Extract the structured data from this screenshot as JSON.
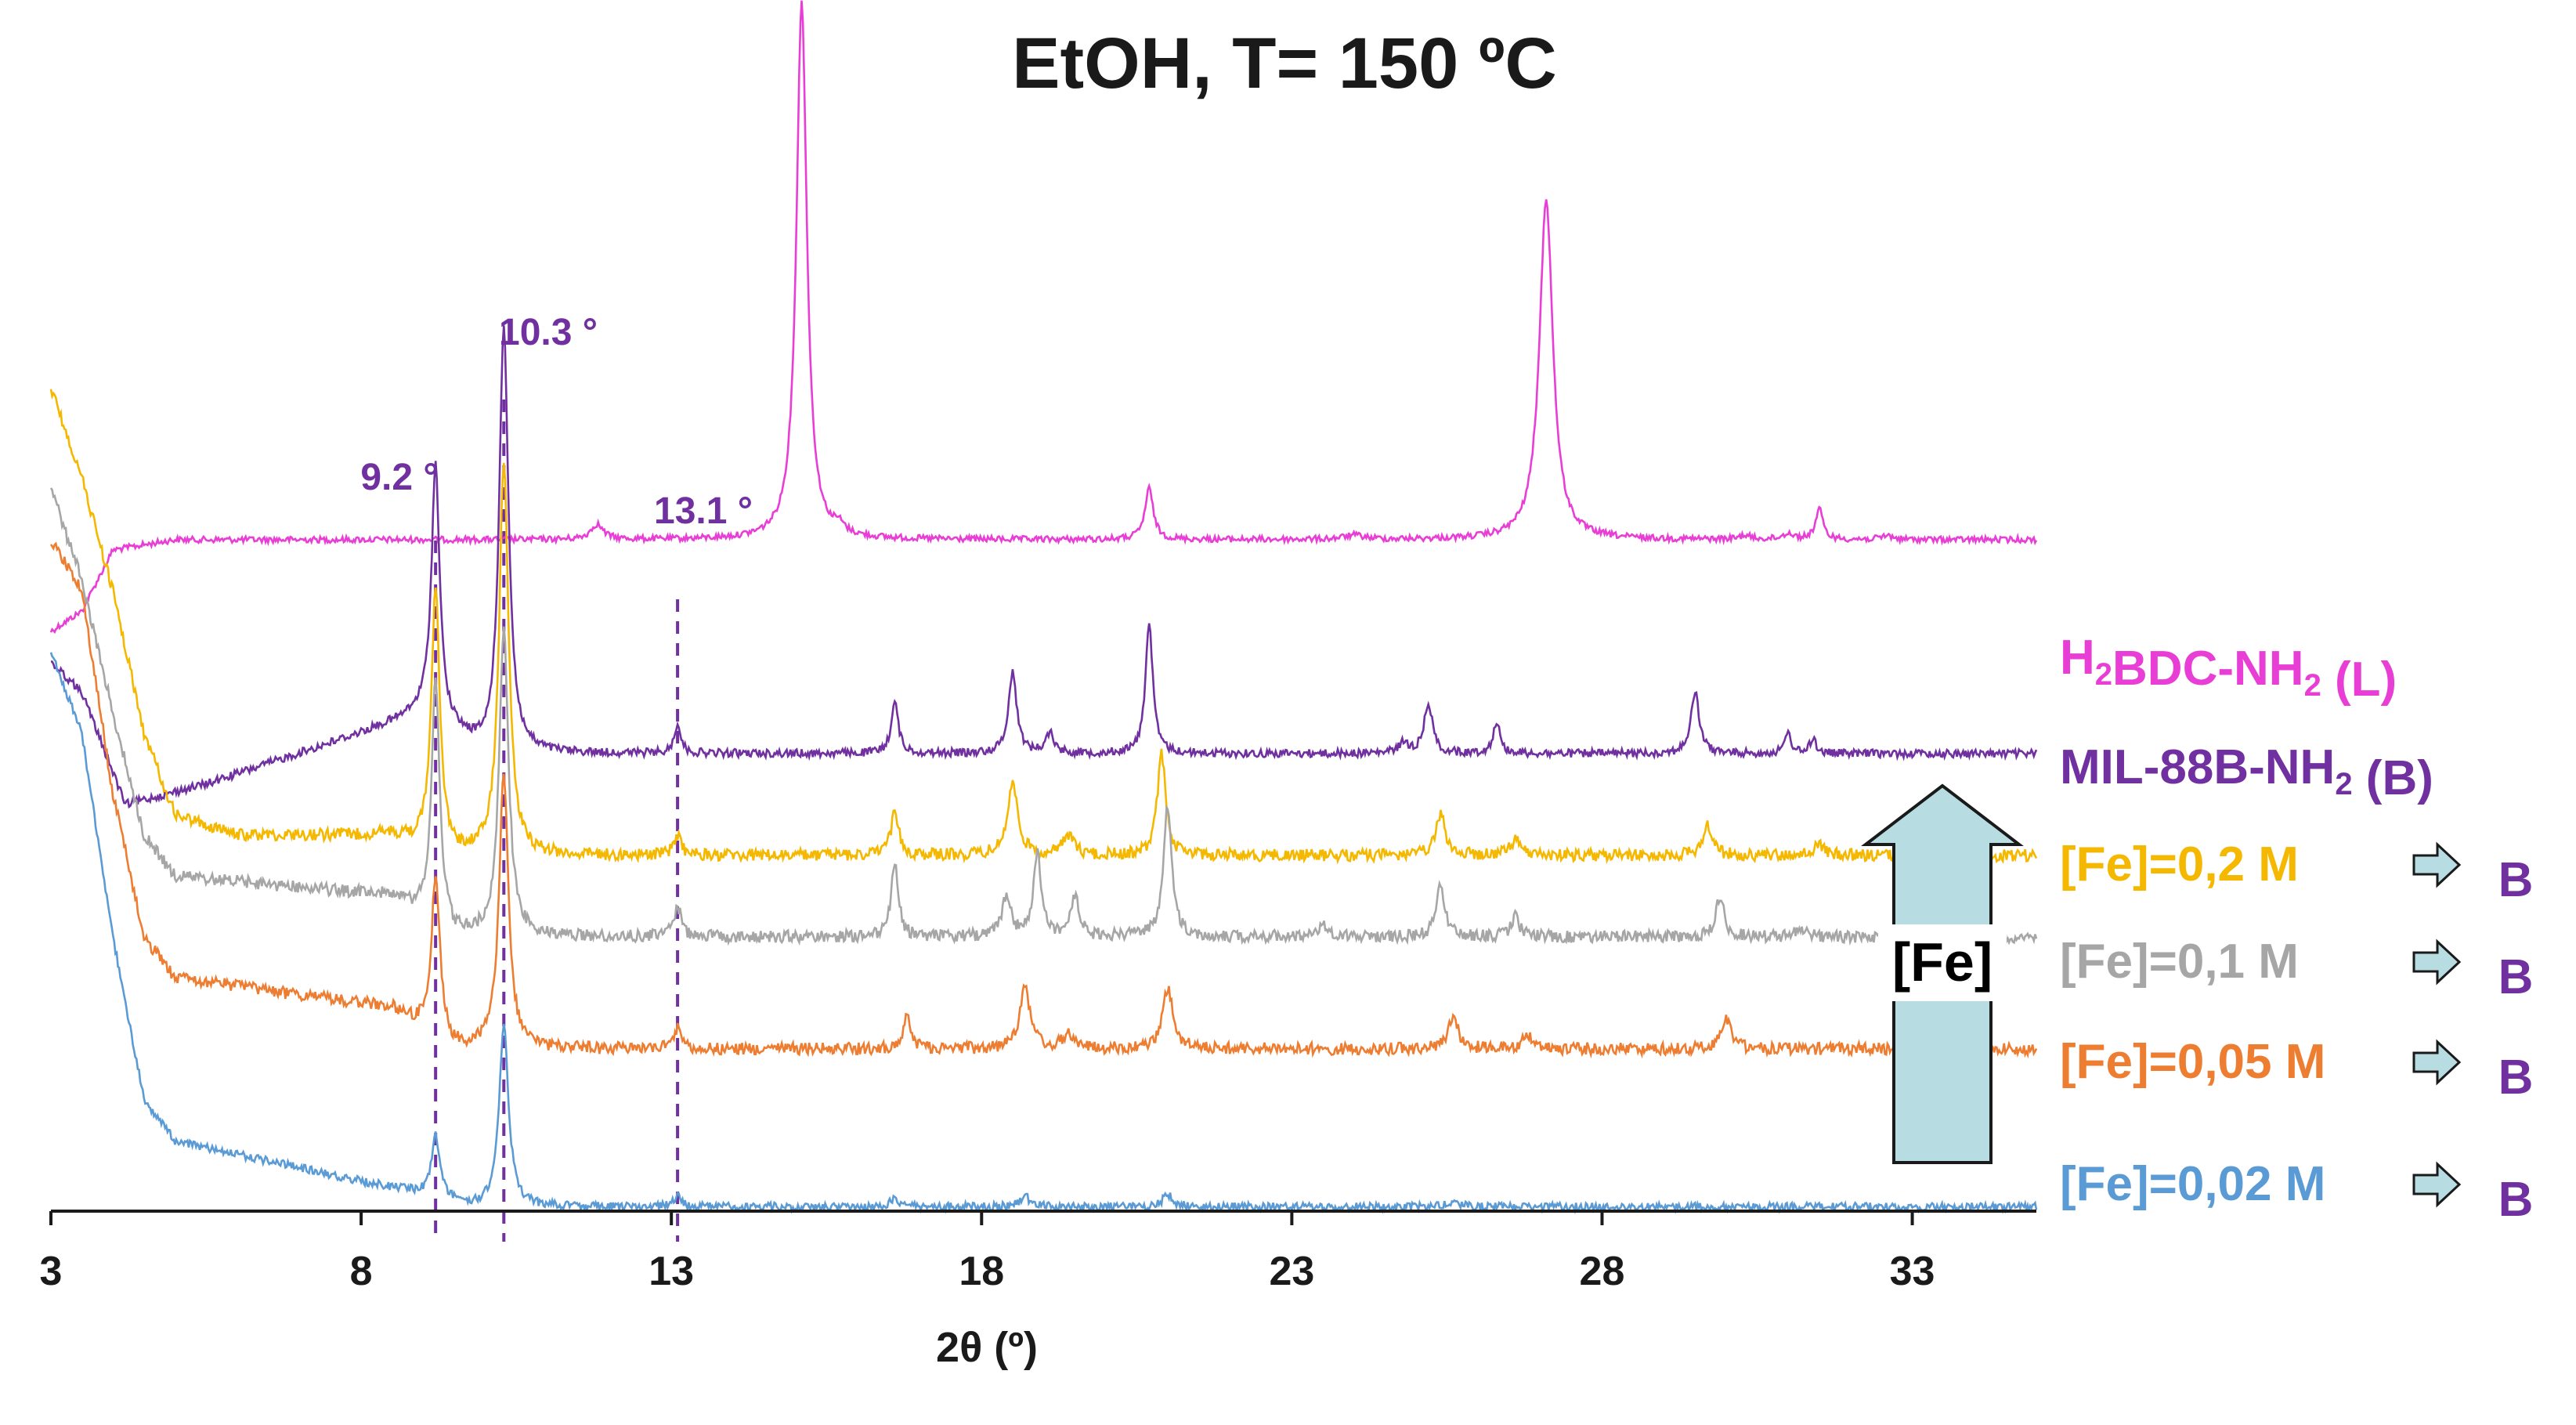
{
  "chart_data": {
    "type": "line",
    "title": "EtOH, T= 150 ºC",
    "xlabel": "2θ (º)",
    "ylabel": "",
    "xlim": [
      3,
      35
    ],
    "xticks": [
      3,
      8,
      13,
      18,
      23,
      28,
      33
    ],
    "reference_lines": [
      {
        "x": 9.2,
        "label": "9.2 °"
      },
      {
        "x": 10.3,
        "label": "10.3 °"
      },
      {
        "x": 13.1,
        "label": "13.1 °"
      }
    ],
    "series": [
      {
        "name": "H2BDC-NH2 (L)",
        "label_main": "H",
        "label_sub1": "2",
        "label_mid": "BDC-NH",
        "label_sub2": "2",
        "label_end": " (L)",
        "color": "#e83ed6",
        "baseline": 0.53,
        "noise": 0.003,
        "start": [
          [
            3.0,
            0.62
          ],
          [
            3.5,
            0.6
          ],
          [
            4.0,
            0.54
          ]
        ],
        "peaks": [
          [
            11.8,
            0.015,
            0.12
          ],
          [
            15.1,
            0.53,
            0.1
          ],
          [
            15.7,
            0.008,
            0.1
          ],
          [
            20.7,
            0.05,
            0.08
          ],
          [
            24.0,
            0.004,
            0.2
          ],
          [
            27.1,
            0.335,
            0.13
          ],
          [
            30.3,
            0.004,
            0.1
          ],
          [
            31.0,
            0.006,
            0.1
          ],
          [
            31.5,
            0.03,
            0.07
          ],
          [
            32.6,
            0.004,
            0.1
          ]
        ]
      },
      {
        "name": "MIL-88B-NH2 (B)",
        "label_main": "MIL-88B-NH",
        "label_sub1": "2",
        "label_mid": " (B)",
        "label_sub2": "",
        "label_end": "",
        "color": "#7030a0",
        "baseline": 0.74,
        "noise": 0.004,
        "start": [
          [
            3.0,
            0.65
          ],
          [
            3.5,
            0.68
          ],
          [
            4.2,
            0.79
          ],
          [
            5.5,
            0.77
          ],
          [
            8.5,
            0.71
          ],
          [
            9.0,
            0.7
          ]
        ],
        "peaks": [
          [
            9.2,
            0.25,
            0.08
          ],
          [
            10.3,
            0.42,
            0.09
          ],
          [
            13.1,
            0.03,
            0.06
          ],
          [
            16.6,
            0.05,
            0.07
          ],
          [
            18.5,
            0.08,
            0.08
          ],
          [
            19.1,
            0.02,
            0.08
          ],
          [
            20.7,
            0.13,
            0.07
          ],
          [
            24.8,
            0.01,
            0.1
          ],
          [
            25.2,
            0.05,
            0.08
          ],
          [
            26.3,
            0.03,
            0.07
          ],
          [
            29.5,
            0.06,
            0.08
          ],
          [
            31.0,
            0.02,
            0.06
          ],
          [
            31.4,
            0.015,
            0.06
          ]
        ]
      },
      {
        "name": "[Fe]=0,2 M",
        "label_main": "[Fe]=0,2 M",
        "label_sub1": "",
        "label_mid": "",
        "label_sub2": "",
        "label_end": "",
        "color": "#f5b800",
        "baseline": 0.84,
        "noise": 0.006,
        "start": [
          [
            3.0,
            0.38
          ],
          [
            3.5,
            0.47
          ],
          [
            4.0,
            0.58
          ],
          [
            4.5,
            0.72
          ],
          [
            5.0,
            0.8
          ],
          [
            6.0,
            0.82
          ],
          [
            8.5,
            0.82
          ]
        ],
        "peaks": [
          [
            9.2,
            0.26,
            0.08
          ],
          [
            10.3,
            0.39,
            0.09
          ],
          [
            13.1,
            0.02,
            0.07
          ],
          [
            16.6,
            0.04,
            0.08
          ],
          [
            18.5,
            0.07,
            0.1
          ],
          [
            19.4,
            0.02,
            0.1
          ],
          [
            20.9,
            0.1,
            0.08
          ],
          [
            25.4,
            0.04,
            0.09
          ],
          [
            26.6,
            0.015,
            0.1
          ],
          [
            29.7,
            0.03,
            0.09
          ],
          [
            31.5,
            0.01,
            0.1
          ]
        ]
      },
      {
        "name": "[Fe]=0,1 M",
        "label_main": "[Fe]=0,1 M",
        "label_sub1": "",
        "label_mid": "",
        "label_sub2": "",
        "label_end": "",
        "color": "#a6a6a6",
        "baseline": 0.92,
        "noise": 0.006,
        "start": [
          [
            3.0,
            0.48
          ],
          [
            3.5,
            0.57
          ],
          [
            4.0,
            0.7
          ],
          [
            4.5,
            0.82
          ],
          [
            5.0,
            0.86
          ],
          [
            8.5,
            0.88
          ]
        ],
        "peaks": [
          [
            9.2,
            0.24,
            0.08
          ],
          [
            10.3,
            0.3,
            0.09
          ],
          [
            13.1,
            0.03,
            0.07
          ],
          [
            16.6,
            0.07,
            0.07
          ],
          [
            18.4,
            0.04,
            0.08
          ],
          [
            18.9,
            0.08,
            0.08
          ],
          [
            19.5,
            0.04,
            0.08
          ],
          [
            21.0,
            0.13,
            0.08
          ],
          [
            23.5,
            0.01,
            0.15
          ],
          [
            25.4,
            0.05,
            0.08
          ],
          [
            26.6,
            0.02,
            0.08
          ],
          [
            29.9,
            0.04,
            0.08
          ],
          [
            31.2,
            0.01,
            0.1
          ]
        ]
      },
      {
        "name": "[Fe]=0,05 M",
        "label_main": "[Fe]=0,05 M",
        "label_sub1": "",
        "label_mid": "",
        "label_sub2": "",
        "label_end": "",
        "color": "#ed7d31",
        "baseline": 1.03,
        "noise": 0.006,
        "start": [
          [
            3.0,
            0.53
          ],
          [
            3.5,
            0.58
          ],
          [
            4.0,
            0.78
          ],
          [
            4.5,
            0.92
          ],
          [
            5.0,
            0.96
          ],
          [
            8.5,
            0.99
          ]
        ],
        "peaks": [
          [
            9.2,
            0.16,
            0.08
          ],
          [
            10.3,
            0.27,
            0.09
          ],
          [
            13.1,
            0.02,
            0.07
          ],
          [
            16.8,
            0.03,
            0.08
          ],
          [
            18.7,
            0.06,
            0.1
          ],
          [
            19.4,
            0.015,
            0.1
          ],
          [
            21.0,
            0.06,
            0.1
          ],
          [
            25.6,
            0.03,
            0.1
          ],
          [
            26.8,
            0.015,
            0.1
          ],
          [
            30.0,
            0.03,
            0.1
          ]
        ]
      },
      {
        "name": "[Fe]=0,02 M",
        "label_main": "[Fe]=0,02 M",
        "label_sub1": "",
        "label_mid": "",
        "label_sub2": "",
        "label_end": "",
        "color": "#5b9bd5",
        "baseline": 1.185,
        "noise": 0.004,
        "start": [
          [
            3.0,
            0.64
          ],
          [
            3.5,
            0.72
          ],
          [
            4.0,
            0.92
          ],
          [
            4.5,
            1.08
          ],
          [
            5.0,
            1.12
          ],
          [
            8.0,
            1.16
          ],
          [
            8.8,
            1.17
          ]
        ],
        "peaks": [
          [
            9.2,
            0.06,
            0.08
          ],
          [
            10.3,
            0.18,
            0.09
          ],
          [
            13.1,
            0.01,
            0.07
          ],
          [
            16.6,
            0.008,
            0.08
          ],
          [
            18.7,
            0.01,
            0.1
          ],
          [
            21.0,
            0.012,
            0.1
          ],
          [
            25.6,
            0.005,
            0.1
          ]
        ]
      }
    ],
    "product_label": "B",
    "arrow_label": "[Fe]"
  }
}
